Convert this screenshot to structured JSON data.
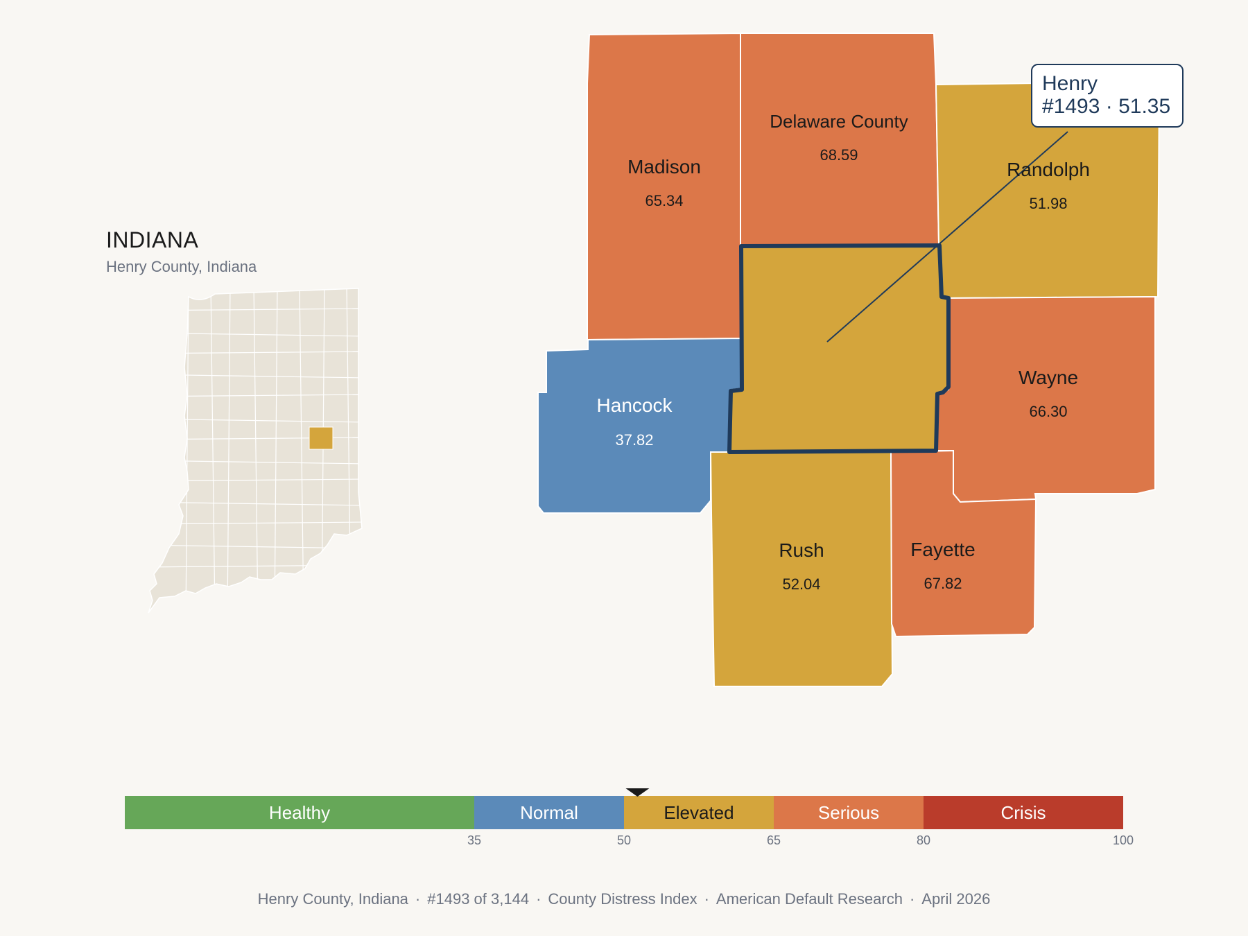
{
  "inset": {
    "state": "INDIANA",
    "subtitle": "Henry County, Indiana",
    "base_color": "#e8e3d8",
    "highlight_color": "#d4a53c"
  },
  "map": {
    "selected": {
      "name": "Henry",
      "rank": "#1493",
      "score": "51.35",
      "tooltip_line1": "Henry",
      "tooltip_line2": "#1493 · 51.35",
      "outline_color": "#1f3a5a"
    },
    "counties": [
      {
        "name": "Madison",
        "value": "65.34",
        "category": "Serious"
      },
      {
        "name": "Delaware County",
        "value": "68.59",
        "category": "Serious"
      },
      {
        "name": "Randolph",
        "value": "51.98",
        "category": "Elevated"
      },
      {
        "name": "Hancock",
        "value": "37.82",
        "category": "Normal"
      },
      {
        "name": "Wayne",
        "value": "66.30",
        "category": "Serious"
      },
      {
        "name": "Rush",
        "value": "52.04",
        "category": "Elevated"
      },
      {
        "name": "Fayette",
        "value": "67.82",
        "category": "Serious"
      },
      {
        "name": "Henry",
        "value": "51.35",
        "category": "Elevated"
      }
    ]
  },
  "legend": {
    "bands": [
      {
        "label": "Healthy",
        "from": 0,
        "to": 35,
        "color": "#66a758",
        "text_color": "#ffffff"
      },
      {
        "label": "Normal",
        "from": 35,
        "to": 50,
        "color": "#5b8ab9",
        "text_color": "#ffffff"
      },
      {
        "label": "Elevated",
        "from": 50,
        "to": 65,
        "color": "#d4a53c",
        "text_color": "#1a1a1a"
      },
      {
        "label": "Serious",
        "from": 65,
        "to": 80,
        "color": "#dc7749",
        "text_color": "#ffffff"
      },
      {
        "label": "Crisis",
        "from": 80,
        "to": 100,
        "color": "#ba3c2b",
        "text_color": "#ffffff"
      }
    ],
    "ticks": [
      "35",
      "50",
      "65",
      "80",
      "100"
    ],
    "marker_value": 51.35
  },
  "footer": {
    "place": "Henry County, Indiana",
    "rank": "#1493 of 3,144",
    "index": "County Distress Index",
    "source": "American Default Research",
    "date": "April 2026"
  }
}
